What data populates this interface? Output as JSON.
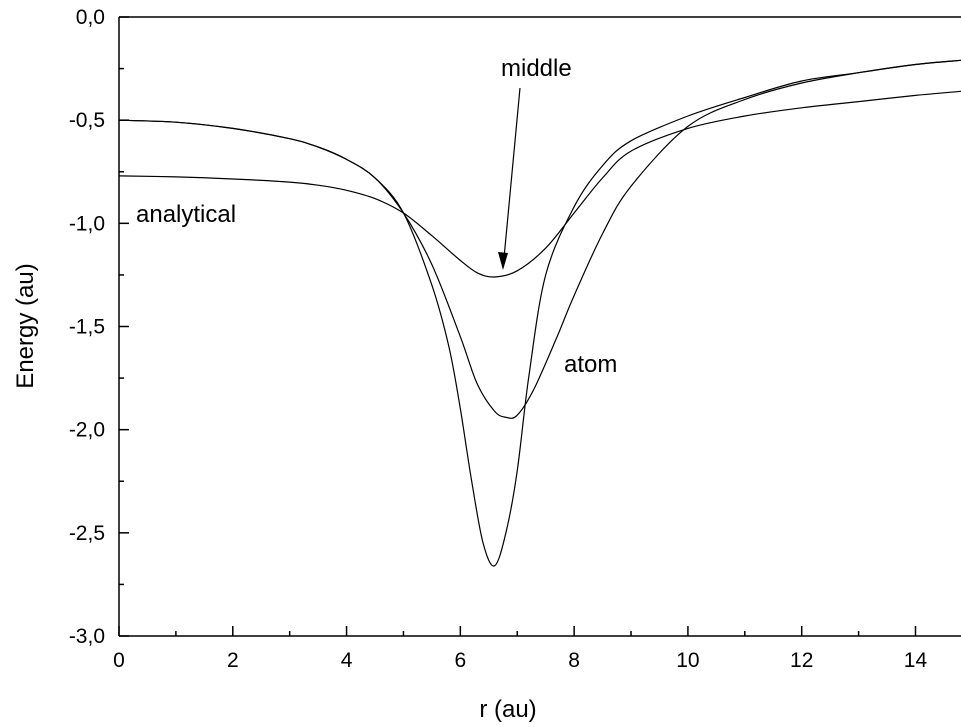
{
  "chart_data": {
    "type": "line",
    "xlabel": "r (au)",
    "ylabel": "Energy (au)",
    "xlim": [
      0,
      14.8
    ],
    "ylim": [
      -3.0,
      0.0
    ],
    "x_major_ticks": [
      0,
      2,
      4,
      6,
      8,
      10,
      12,
      14
    ],
    "x_tick_labels": [
      "0",
      "2",
      "4",
      "6",
      "8",
      "10",
      "12",
      "14"
    ],
    "y_major_ticks": [
      0.0,
      -0.5,
      -1.0,
      -1.5,
      -2.0,
      -2.5,
      -3.0
    ],
    "y_tick_labels": [
      "0,0",
      "-0,5",
      "-1,0",
      "-1,5",
      "-2,0",
      "-2,5",
      "-3,0"
    ],
    "grid": false,
    "series": [
      {
        "name": "analytical",
        "x": [
          0,
          1,
          2,
          3,
          3.5,
          4,
          4.5,
          5,
          5.5,
          6,
          6.3,
          6.6,
          7,
          7.5,
          8,
          8.5,
          9,
          10,
          11,
          12,
          13,
          14,
          14.8
        ],
        "y": [
          -0.77,
          -0.775,
          -0.785,
          -0.8,
          -0.815,
          -0.84,
          -0.88,
          -0.95,
          -1.06,
          -1.18,
          -1.24,
          -1.26,
          -1.23,
          -1.12,
          -0.95,
          -0.78,
          -0.65,
          -0.54,
          -0.48,
          -0.44,
          -0.41,
          -0.38,
          -0.36
        ]
      },
      {
        "name": "atom",
        "x": [
          0,
          1,
          2,
          3,
          3.5,
          4,
          4.5,
          5,
          5.5,
          6,
          6.3,
          6.6,
          6.8,
          7,
          7.3,
          7.7,
          8,
          8.5,
          9,
          10,
          11,
          12,
          13,
          14,
          14.8
        ],
        "y": [
          -0.5,
          -0.51,
          -0.54,
          -0.59,
          -0.63,
          -0.69,
          -0.78,
          -0.95,
          -1.2,
          -1.55,
          -1.78,
          -1.91,
          -1.94,
          -1.93,
          -1.8,
          -1.55,
          -1.35,
          -1.05,
          -0.82,
          -0.53,
          -0.4,
          -0.32,
          -0.27,
          -0.23,
          -0.21
        ]
      },
      {
        "name": "middle",
        "x": [
          0,
          1,
          2,
          3,
          3.5,
          4,
          4.5,
          5,
          5.5,
          5.8,
          6,
          6.2,
          6.4,
          6.6,
          6.8,
          7,
          7.2,
          7.5,
          8,
          8.5,
          9,
          10,
          11,
          12,
          13,
          14,
          14.8
        ],
        "y": [
          -0.5,
          -0.51,
          -0.54,
          -0.59,
          -0.63,
          -0.69,
          -0.78,
          -0.95,
          -1.3,
          -1.6,
          -1.9,
          -2.25,
          -2.55,
          -2.66,
          -2.5,
          -2.2,
          -1.75,
          -1.25,
          -0.92,
          -0.72,
          -0.6,
          -0.48,
          -0.39,
          -0.31,
          -0.27,
          -0.23,
          -0.21
        ]
      }
    ],
    "annotations": {
      "analytical": "analytical",
      "atom": "atom",
      "middle": "middle"
    }
  }
}
